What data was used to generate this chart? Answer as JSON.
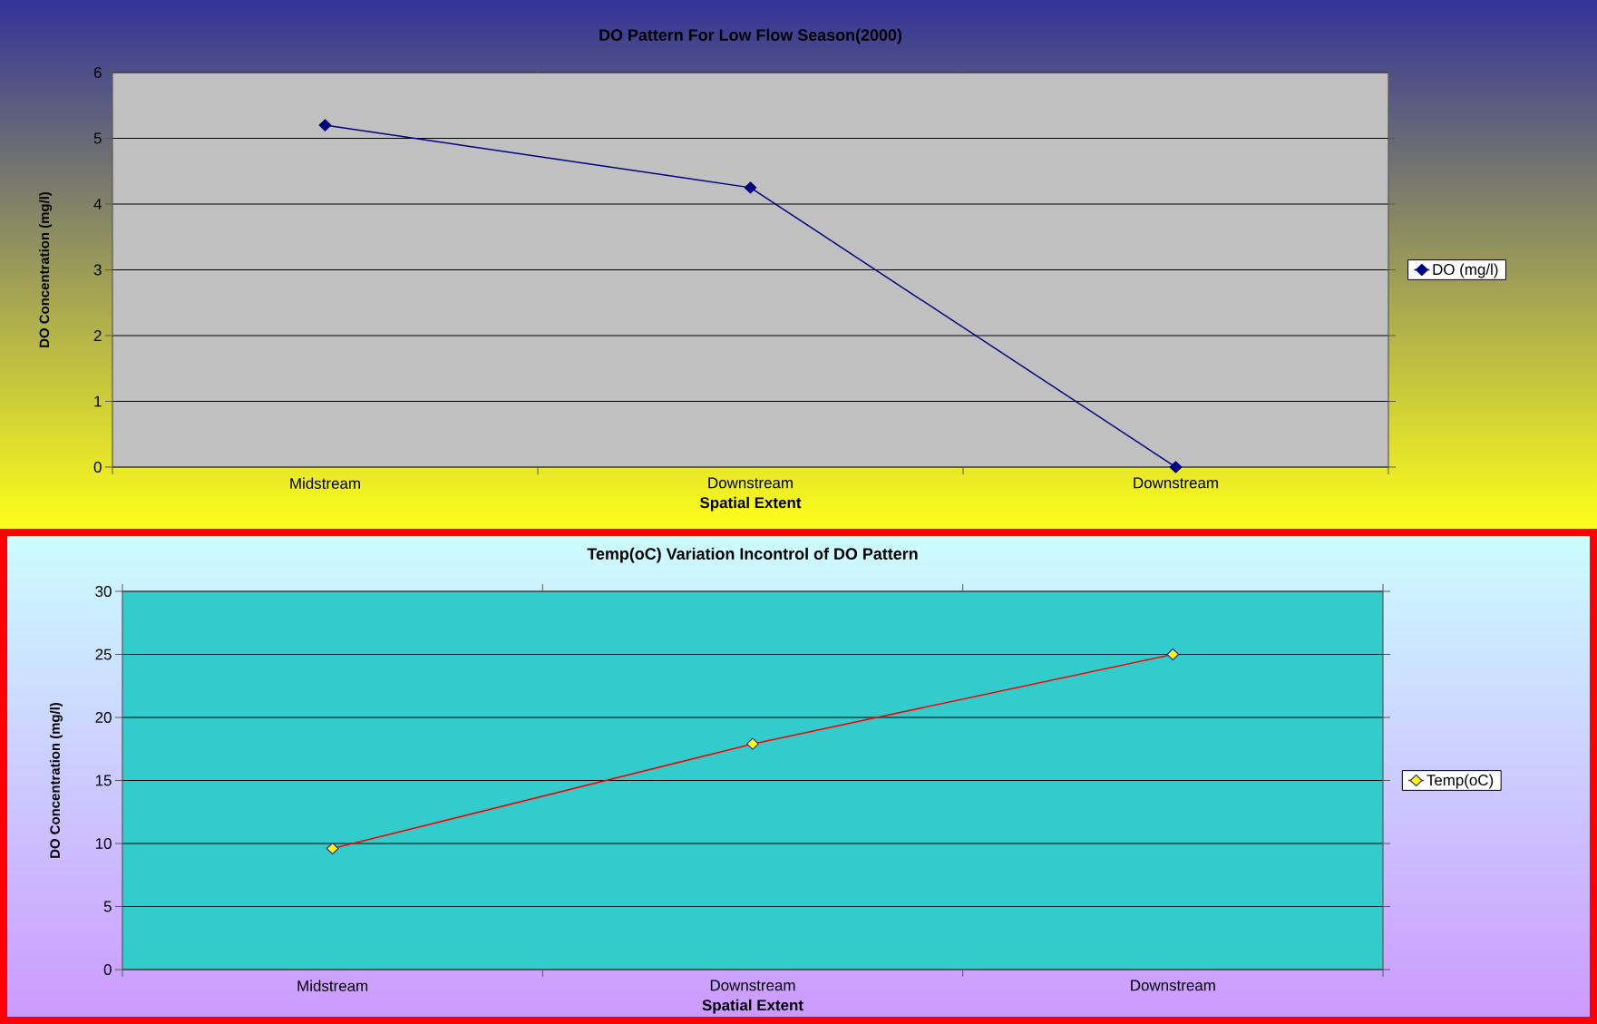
{
  "chart_data": [
    {
      "type": "line",
      "title": "DO Pattern For Low Flow Season(2000)",
      "xlabel": "Spatial Extent",
      "ylabel": "DO Concentration (mg/l)",
      "categories": [
        "Midstream",
        "Downstream",
        "Downstream"
      ],
      "series": [
        {
          "name": "DO (mg/l)",
          "color": "#000080",
          "values": [
            5.2,
            4.25,
            0
          ]
        }
      ],
      "ylim": [
        0,
        6
      ],
      "yticks": [
        0,
        1,
        2,
        3,
        4,
        5,
        6
      ],
      "grid": "y",
      "legend": "right",
      "marker": "diamond"
    },
    {
      "type": "line",
      "title": "Temp(oC) Variation Incontrol of DO Pattern",
      "xlabel": "Spatial Extent",
      "ylabel": "DO Concentration (mg/l)",
      "categories": [
        "Midstream",
        "Downstream",
        "Downstream"
      ],
      "series": [
        {
          "name": "Temp(oC)",
          "color": "#FF0000",
          "values": [
            9.6,
            17.9,
            25
          ]
        }
      ],
      "ylim": [
        0,
        30
      ],
      "yticks": [
        0,
        5,
        10,
        15,
        20,
        25,
        30
      ],
      "grid": "y",
      "legend": "right",
      "marker": "diamond"
    }
  ]
}
